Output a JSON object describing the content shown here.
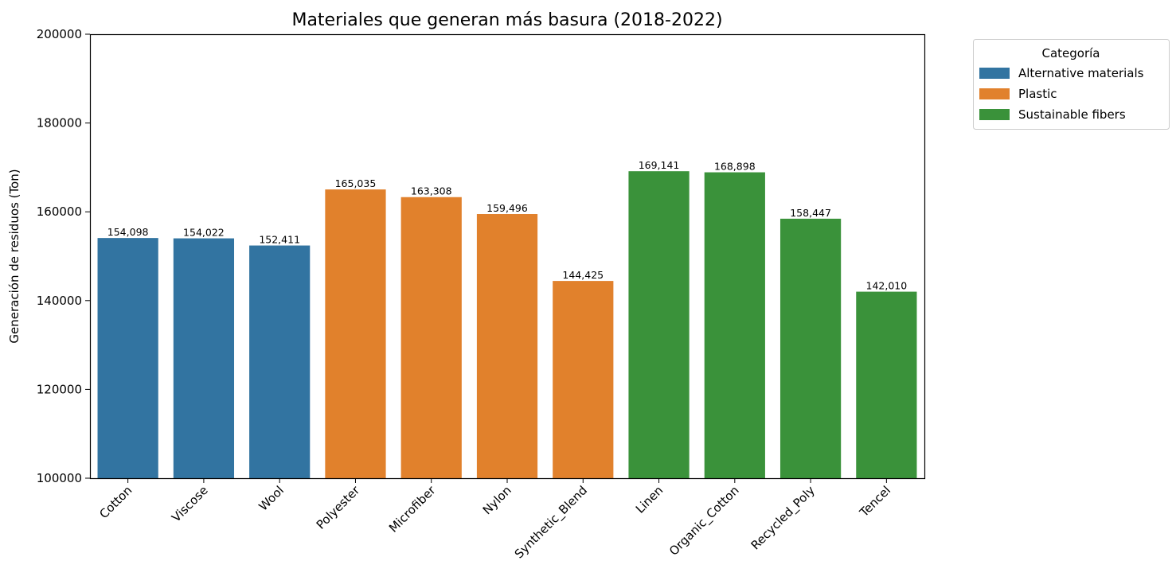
{
  "chart_data": {
    "type": "bar",
    "title": "Materiales que generan más basura (2018-2022)",
    "xlabel": "",
    "ylabel": "Generación de residuos (Ton)",
    "ylim": [
      100000,
      200000
    ],
    "yticks": [
      100000,
      120000,
      140000,
      160000,
      180000,
      200000
    ],
    "grid": false,
    "legend": {
      "title": "Categoría",
      "placement": "outside-upper-right",
      "entries": [
        {
          "label": "Alternative materials",
          "color": "#3274a1"
        },
        {
          "label": "Plastic",
          "color": "#e1812c"
        },
        {
          "label": "Sustainable fibers",
          "color": "#3a923a"
        }
      ]
    },
    "categories": [
      "Cotton",
      "Viscose",
      "Wool",
      "Polyester",
      "Microfiber",
      "Nylon",
      "Synthetic_Blend",
      "Linen",
      "Organic_Cotton",
      "Recycled_Poly",
      "Tencel"
    ],
    "values": [
      154098,
      154022,
      152411,
      165035,
      163308,
      159496,
      144425,
      169141,
      168898,
      158447,
      142010
    ],
    "value_labels": [
      "154,098",
      "154,022",
      "152,411",
      "165,035",
      "163,308",
      "159,496",
      "144,425",
      "169,141",
      "168,898",
      "158,447",
      "142,010"
    ],
    "bar_groups": [
      "Alternative materials",
      "Alternative materials",
      "Alternative materials",
      "Plastic",
      "Plastic",
      "Plastic",
      "Plastic",
      "Sustainable fibers",
      "Sustainable fibers",
      "Sustainable fibers",
      "Sustainable fibers"
    ]
  }
}
